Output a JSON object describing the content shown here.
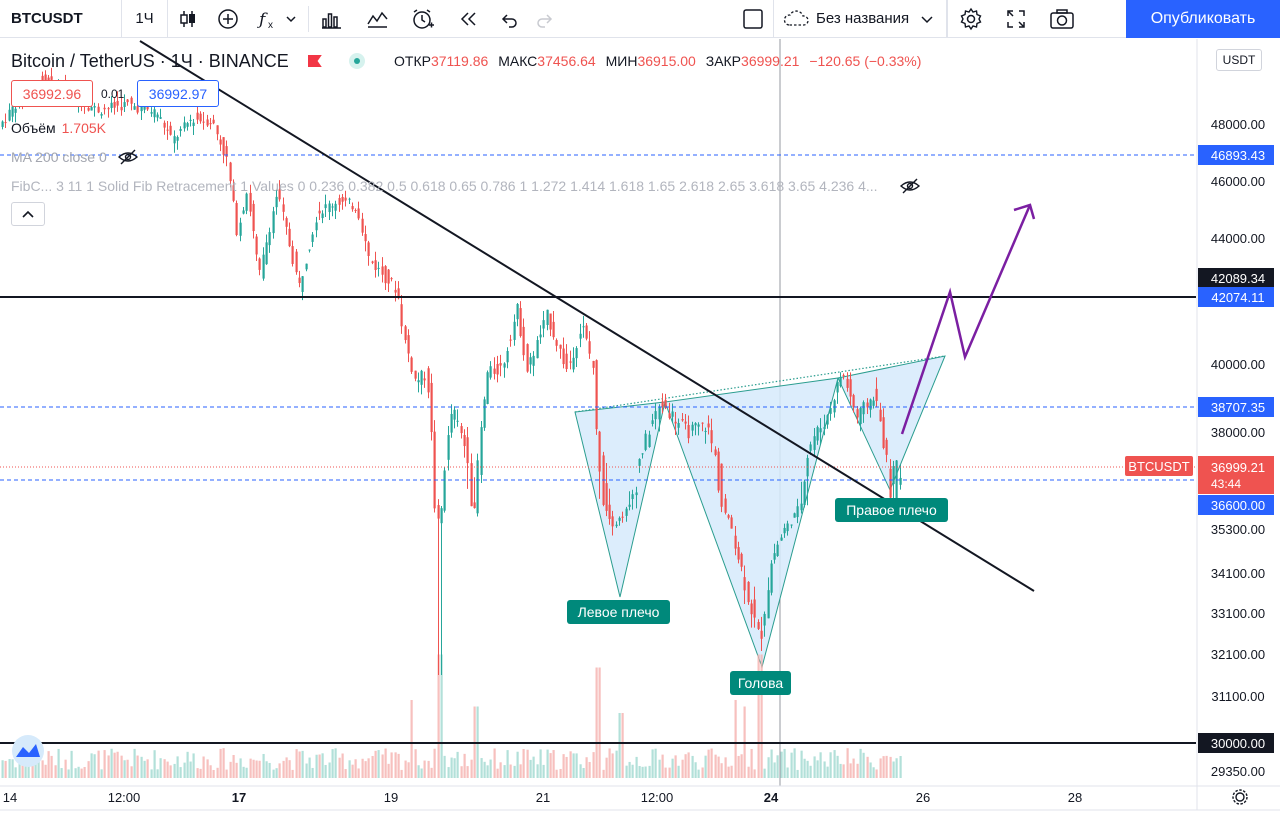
{
  "toolbar": {
    "symbol": "BTCUSDT",
    "interval": "1Ч",
    "layout_name": "Без названия",
    "publish_label": "Опубликовать"
  },
  "legend": {
    "title": "Bitcoin / TetherUS · 1Ч · BINANCE",
    "ohlc": {
      "open_label": "ОТКР",
      "open": "37119.86",
      "high_label": "МАКС",
      "high": "37456.64",
      "low_label": "МИН",
      "low": "36915.00",
      "close_label": "ЗАКР",
      "close": "36999.21",
      "change": "−120.65 (−0.33%)"
    },
    "sell_price": "36992.96",
    "spread": "0.01",
    "buy_price": "36992.97",
    "volume_label": "Объём",
    "volume_value": "1.705K",
    "ma_label": "MA 200 close 0",
    "fib_label": "FibC... 3 11 1 Solid Fib Retracement 1 Values 0 0.236 0.382 0.5 0.618 0.65 0.786 1 1.272 1.414 1.618 1.65 2.618 2.65 3.618 3.65 4.236 4..."
  },
  "currency": "USDT",
  "price_axis": {
    "ticks": [
      {
        "label": "48000.00",
        "value": 48000
      },
      {
        "label": "46000.00",
        "value": 46000
      },
      {
        "label": "44000.00",
        "value": 44000
      },
      {
        "label": "40000.00",
        "value": 40000
      },
      {
        "label": "38000.00",
        "value": 38000
      },
      {
        "label": "35300.00",
        "value": 35300
      },
      {
        "label": "34100.00",
        "value": 34100
      },
      {
        "label": "33100.00",
        "value": 33100
      },
      {
        "label": "32100.00",
        "value": 32100
      },
      {
        "label": "31100.00",
        "value": 31100
      },
      {
        "label": "29350.00",
        "value": 29350
      }
    ],
    "level_labels": [
      {
        "text": "46893.43",
        "kind": "blue"
      },
      {
        "text": "42089.34",
        "kind": "black"
      },
      {
        "text": "42074.11",
        "kind": "blue"
      },
      {
        "text": "38707.35",
        "kind": "blue"
      },
      {
        "text": "36600.00",
        "kind": "blue"
      },
      {
        "text": "30000.00",
        "kind": "black"
      }
    ],
    "current_symbol": "BTCUSDT",
    "current_price": "36999.21",
    "countdown": "43:44"
  },
  "time_axis": {
    "ticks": [
      {
        "label": "14",
        "bold": false
      },
      {
        "label": "12:00",
        "bold": false
      },
      {
        "label": "17",
        "bold": true
      },
      {
        "label": "19",
        "bold": false
      },
      {
        "label": "21",
        "bold": false
      },
      {
        "label": "12:00",
        "bold": false
      },
      {
        "label": "24",
        "bold": true
      },
      {
        "label": "26",
        "bold": false
      },
      {
        "label": "28",
        "bold": false
      }
    ]
  },
  "annotations": {
    "left_shoulder": "Левое плечо",
    "head": "Голова",
    "right_shoulder": "Правое плечо"
  },
  "colors": {
    "up": "#26a69a",
    "down": "#ef5350",
    "accent": "#2962ff",
    "pattern_fill": "#d6eafb",
    "arrow": "#7b1fa2",
    "label_bg": "#00897b"
  },
  "chart_data": {
    "type": "candlestick",
    "symbol": "BTCUSDT",
    "interval": "1Ч",
    "price_axis_range": [
      29000,
      50500
    ],
    "levels": [
      46893.43,
      42089.34,
      42074.11,
      38707.35,
      36600.0,
      30000.0
    ],
    "pattern": "inverse head and shoulders",
    "waypoints": [
      {
        "x": 0,
        "y": 47800
      },
      {
        "x": 20,
        "y": 48800
      },
      {
        "x": 45,
        "y": 49600
      },
      {
        "x": 60,
        "y": 49300
      },
      {
        "x": 75,
        "y": 49000
      },
      {
        "x": 100,
        "y": 48500
      },
      {
        "x": 130,
        "y": 48700
      },
      {
        "x": 160,
        "y": 48400
      },
      {
        "x": 175,
        "y": 47400
      },
      {
        "x": 195,
        "y": 48200
      },
      {
        "x": 215,
        "y": 48100
      },
      {
        "x": 230,
        "y": 46700
      },
      {
        "x": 240,
        "y": 44200
      },
      {
        "x": 250,
        "y": 45700
      },
      {
        "x": 262,
        "y": 42700
      },
      {
        "x": 280,
        "y": 45600
      },
      {
        "x": 302,
        "y": 42400
      },
      {
        "x": 320,
        "y": 44900
      },
      {
        "x": 340,
        "y": 45300
      },
      {
        "x": 360,
        "y": 45100
      },
      {
        "x": 372,
        "y": 43300
      },
      {
        "x": 400,
        "y": 42300
      },
      {
        "x": 407,
        "y": 40800
      },
      {
        "x": 418,
        "y": 39500
      },
      {
        "x": 430,
        "y": 39700
      },
      {
        "x": 440,
        "y": 35500
      },
      {
        "x": 455,
        "y": 38700
      },
      {
        "x": 470,
        "y": 37400
      },
      {
        "x": 477,
        "y": 36200
      },
      {
        "x": 490,
        "y": 39700
      },
      {
        "x": 505,
        "y": 39900
      },
      {
        "x": 520,
        "y": 41700
      },
      {
        "x": 530,
        "y": 39800
      },
      {
        "x": 550,
        "y": 41500
      },
      {
        "x": 570,
        "y": 39800
      },
      {
        "x": 585,
        "y": 41200
      },
      {
        "x": 597,
        "y": 39800
      },
      {
        "x": 600,
        "y": 37400
      },
      {
        "x": 617,
        "y": 35500
      },
      {
        "x": 640,
        "y": 37000
      },
      {
        "x": 655,
        "y": 38300
      },
      {
        "x": 665,
        "y": 38800
      },
      {
        "x": 690,
        "y": 38000
      },
      {
        "x": 710,
        "y": 38200
      },
      {
        "x": 725,
        "y": 36500
      },
      {
        "x": 740,
        "y": 34700
      },
      {
        "x": 750,
        "y": 33600
      },
      {
        "x": 763,
        "y": 32400
      },
      {
        "x": 775,
        "y": 34500
      },
      {
        "x": 795,
        "y": 35800
      },
      {
        "x": 815,
        "y": 37800
      },
      {
        "x": 830,
        "y": 38400
      },
      {
        "x": 845,
        "y": 39800
      },
      {
        "x": 860,
        "y": 38400
      },
      {
        "x": 878,
        "y": 39100
      },
      {
        "x": 892,
        "y": 36800
      },
      {
        "x": 900,
        "y": 37000
      }
    ]
  }
}
